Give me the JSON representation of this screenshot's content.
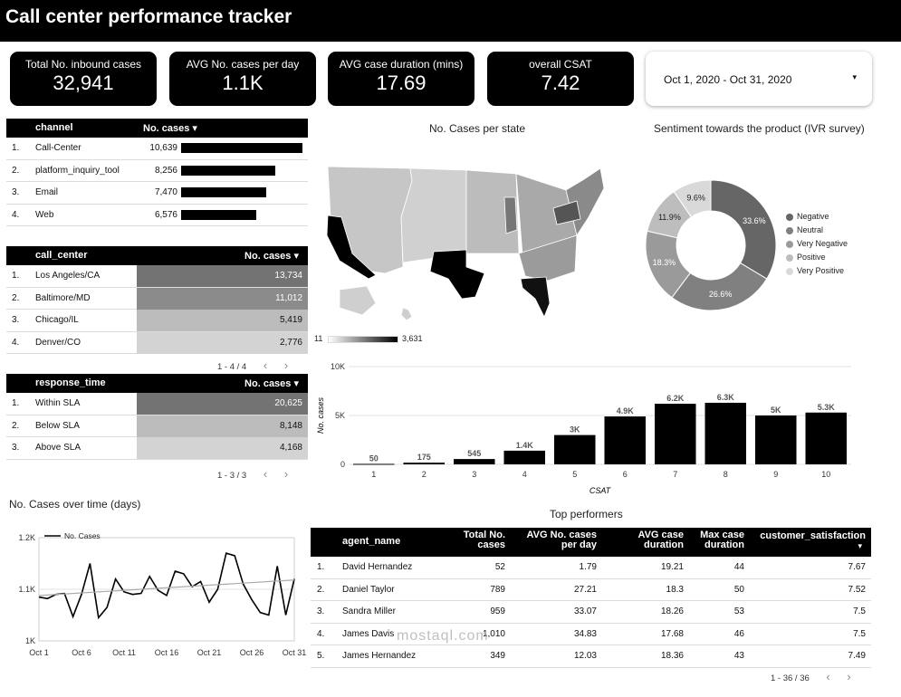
{
  "header": {
    "title": "Call center performance tracker"
  },
  "kpis": [
    {
      "label": "Total No. inbound cases",
      "value": "32,941"
    },
    {
      "label": "AVG No. cases per day",
      "value": "1.1K"
    },
    {
      "label": "AVG case duration (mins)",
      "value": "17.69"
    },
    {
      "label": "overall CSAT",
      "value": "7.42"
    }
  ],
  "date_range": {
    "value": "Oct 1, 2020 - Oct 31, 2020",
    "caret": "▾"
  },
  "channel_table": {
    "headers": [
      "channel",
      "No. cases ▾"
    ],
    "rows": [
      {
        "n": "1.",
        "name": "Call-Center",
        "value": "10,639",
        "raw": 10639
      },
      {
        "n": "2.",
        "name": "platform_inquiry_tool",
        "value": "8,256",
        "raw": 8256
      },
      {
        "n": "3.",
        "name": "Email",
        "value": "7,470",
        "raw": 7470
      },
      {
        "n": "4.",
        "name": "Web",
        "value": "6,576",
        "raw": 6576
      }
    ]
  },
  "call_center_table": {
    "headers": [
      "call_center",
      "No. cases ▾"
    ],
    "rows": [
      {
        "n": "1.",
        "name": "Los Angeles/CA",
        "value": "13,734",
        "raw": 13734
      },
      {
        "n": "2.",
        "name": "Baltimore/MD",
        "value": "11,012",
        "raw": 11012
      },
      {
        "n": "3.",
        "name": "Chicago/IL",
        "value": "5,419",
        "raw": 5419
      },
      {
        "n": "4.",
        "name": "Denver/CO",
        "value": "2,776",
        "raw": 2776
      }
    ],
    "pager": "1 - 4 / 4"
  },
  "response_time_table": {
    "headers": [
      "response_time",
      "No. cases ▾"
    ],
    "rows": [
      {
        "n": "1.",
        "name": "Within SLA",
        "value": "20,625",
        "raw": 20625
      },
      {
        "n": "2.",
        "name": "Below SLA",
        "value": "8,148",
        "raw": 8148
      },
      {
        "n": "3.",
        "name": "Above SLA",
        "value": "4,168",
        "raw": 4168
      }
    ],
    "pager": "1 - 3 / 3"
  },
  "map": {
    "title": "No. Cases per state",
    "scale_min": "11",
    "scale_max": "3,631"
  },
  "sentiment": {
    "title": "Sentiment towards the product (IVR survey)",
    "slices": [
      {
        "name": "Negative",
        "value": 33.6,
        "label": "33.6%",
        "color": "#666666"
      },
      {
        "name": "Neutral",
        "value": 26.6,
        "label": "26.6%",
        "color": "#808080"
      },
      {
        "name": "Very Negative",
        "value": 18.3,
        "label": "18.3%",
        "color": "#9a9a9a"
      },
      {
        "name": "Positive",
        "value": 11.9,
        "label": "11.9%",
        "color": "#bdbdbd"
      },
      {
        "name": "Very Positive",
        "value": 9.6,
        "label": "9.6%",
        "color": "#d9d9d9"
      }
    ]
  },
  "chart_data": [
    {
      "type": "bar",
      "categories": [
        "1",
        "2",
        "3",
        "4",
        "5",
        "6",
        "7",
        "8",
        "9",
        "10"
      ],
      "values": [
        50,
        175,
        545,
        1400,
        3000,
        4900,
        6200,
        6300,
        5000,
        5300
      ],
      "value_labels": [
        "50",
        "175",
        "545",
        "1.4K",
        "3K",
        "4.9K",
        "6.2K",
        "6.3K",
        "5K",
        "5.3K"
      ],
      "xlabel": "CSAT",
      "ylabel": "No. cases",
      "ylim": [
        0,
        10000
      ],
      "yticks": [
        "0",
        "5K",
        "10K"
      ],
      "grid": true,
      "color": "#000000"
    },
    {
      "type": "line",
      "title": "No. Cases over time (days)",
      "series": [
        {
          "name": "No. Cases",
          "values": [
            1085,
            1082,
            1090,
            1092,
            1047,
            1090,
            1150,
            1045,
            1065,
            1120,
            1095,
            1090,
            1092,
            1125,
            1098,
            1088,
            1135,
            1130,
            1105,
            1115,
            1075,
            1100,
            1170,
            1165,
            1110,
            1080,
            1055,
            1050,
            1145,
            1050,
            1120
          ]
        },
        {
          "name": "trend",
          "values": [
            1088,
            1118
          ]
        }
      ],
      "xticks": [
        "Oct 1",
        "Oct 6",
        "Oct 11",
        "Oct 16",
        "Oct 21",
        "Oct 26",
        "Oct 31"
      ],
      "yticks": [
        "1K",
        "1.1K",
        "1.2K"
      ],
      "ylim": [
        1000,
        1200
      ],
      "legend": "top-left"
    }
  ],
  "performers": {
    "title": "Top performers",
    "headers": [
      "agent_name",
      "Total No. cases",
      "AVG No. cases per day",
      "AVG case duration",
      "Max case duration",
      "customer_satisfaction"
    ],
    "sort_caret": "▾",
    "rows": [
      {
        "n": "1.",
        "name": "David Hernandez",
        "total": "52",
        "avg": "1.79",
        "dur": "19.21",
        "max": "44",
        "csat": "7.67"
      },
      {
        "n": "2.",
        "name": "Daniel Taylor",
        "total": "789",
        "avg": "27.21",
        "dur": "18.3",
        "max": "50",
        "csat": "7.52"
      },
      {
        "n": "3.",
        "name": "Sandra Miller",
        "total": "959",
        "avg": "33.07",
        "dur": "18.26",
        "max": "53",
        "csat": "7.5"
      },
      {
        "n": "4.",
        "name": "James Davis",
        "total": "1,010",
        "avg": "34.83",
        "dur": "17.68",
        "max": "46",
        "csat": "7.5"
      },
      {
        "n": "5.",
        "name": "James Hernandez",
        "total": "349",
        "avg": "12.03",
        "dur": "18.36",
        "max": "43",
        "csat": "7.49"
      }
    ],
    "pager": "1 - 36 / 36"
  },
  "watermark": {
    "text": "mostaql.com"
  }
}
